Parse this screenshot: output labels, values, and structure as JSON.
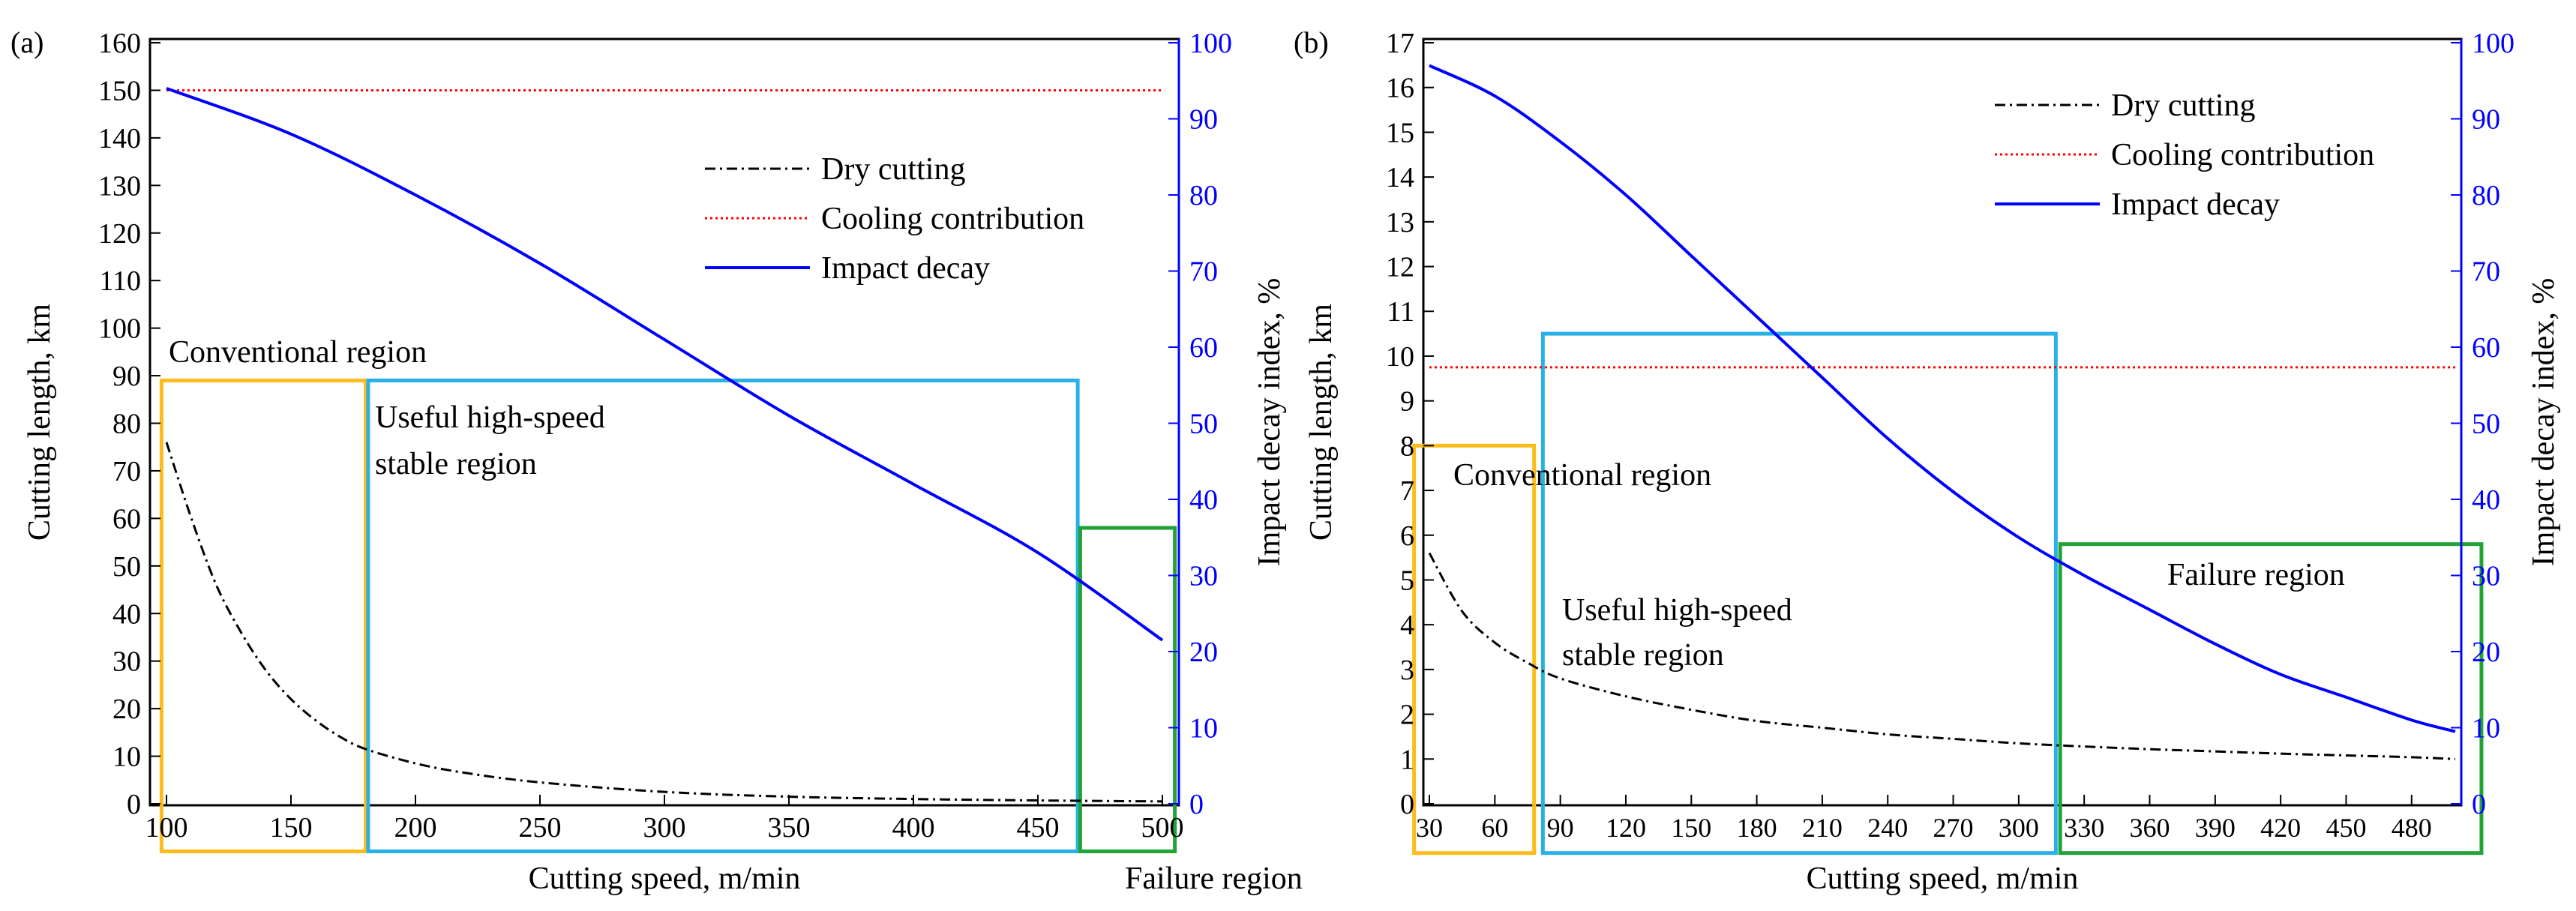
{
  "panel_a": {
    "label": "(a)",
    "xlabel": "Cutting speed, m/min",
    "ylabel_left": "Cutting length, km",
    "ylabel_right": "Impact decay index, %",
    "xticks": [
      100,
      150,
      200,
      250,
      300,
      350,
      400,
      450,
      500
    ],
    "yticks_left": [
      0,
      10,
      20,
      30,
      40,
      50,
      60,
      70,
      80,
      90,
      100,
      110,
      120,
      130,
      140,
      150,
      160
    ],
    "yticks_right": [
      0,
      10,
      20,
      30,
      40,
      50,
      60,
      70,
      80,
      90,
      100
    ],
    "legend": [
      "Dry cutting",
      "Cooling contribution",
      "Impact decay"
    ],
    "regions": [
      {
        "label": "Conventional region",
        "color": "#fbbc1c",
        "x_range": [
          98,
          180
        ],
        "y_range_left": [
          -10,
          89
        ]
      },
      {
        "label": "Useful high-speed\nstable region",
        "color": "#29b1e6",
        "x_range": [
          181,
          466
        ],
        "y_range_left": [
          -10,
          89
        ]
      },
      {
        "label": "Failure region",
        "color": "#21a339",
        "x_range": [
          467,
          505
        ],
        "y_range_left": [
          -10,
          58
        ]
      }
    ]
  },
  "panel_b": {
    "label": "(b)",
    "xlabel": "Cutting speed, m/min",
    "ylabel_left": "Cutting length, km",
    "ylabel_right": "Impact decay index, %",
    "xticks": [
      30,
      60,
      90,
      120,
      150,
      180,
      210,
      240,
      270,
      300,
      330,
      360,
      390,
      420,
      450,
      480
    ],
    "yticks_left": [
      0,
      1,
      2,
      3,
      4,
      5,
      6,
      7,
      8,
      9,
      10,
      11,
      12,
      13,
      14,
      15,
      16,
      17
    ],
    "yticks_right": [
      0,
      10,
      20,
      30,
      40,
      50,
      60,
      70,
      80,
      90,
      100
    ],
    "legend": [
      "Dry cutting",
      "Cooling contribution",
      "Impact decay"
    ],
    "regions": [
      {
        "label": "Conventional region",
        "color": "#fbbc1c",
        "x_range": [
          23,
          78
        ],
        "y_range_left": [
          -1.1,
          8.0
        ]
      },
      {
        "label": "Useful high-speed\nstable region",
        "color": "#29b1e6",
        "x_range": [
          82,
          317
        ],
        "y_range_left": [
          -1.1,
          10.5
        ]
      },
      {
        "label": "Failure region",
        "color": "#21a339",
        "x_range": [
          319,
          512
        ],
        "y_range_left": [
          -1.1,
          5.8
        ]
      }
    ]
  },
  "chart_data": [
    {
      "type": "line",
      "panel": "(a)",
      "xlabel": "Cutting speed, m/min",
      "ylabel": "Cutting length, km",
      "y2label": "Impact decay index, %",
      "xlim": [
        100,
        500
      ],
      "ylim": [
        0,
        160
      ],
      "y2lim": [
        0,
        100
      ],
      "series": [
        {
          "name": "Dry cutting",
          "axis": "left",
          "color": "#000000",
          "style": "dashdot",
          "x": [
            100,
            110,
            120,
            130,
            140,
            150,
            160,
            170,
            180,
            200,
            220,
            250,
            300,
            350,
            400,
            450,
            500
          ],
          "y": [
            76,
            60,
            46,
            36,
            28,
            22,
            17.5,
            14,
            11.5,
            8.5,
            6.5,
            4.5,
            2.5,
            1.5,
            1,
            0.7,
            0.5
          ]
        },
        {
          "name": "Cooling contribution",
          "axis": "left",
          "color": "#ff0000",
          "style": "dotted",
          "x": [
            100,
            500
          ],
          "y": [
            150,
            150
          ]
        },
        {
          "name": "Impact decay",
          "axis": "right",
          "color": "#0000ff",
          "style": "solid",
          "x": [
            100,
            150,
            200,
            250,
            300,
            350,
            400,
            450,
            500
          ],
          "y": [
            94,
            88,
            80,
            71,
            61,
            51,
            42,
            33,
            21.5
          ]
        }
      ]
    },
    {
      "type": "line",
      "panel": "(b)",
      "xlabel": "Cutting speed, m/min",
      "ylabel": "Cutting length, km",
      "y2label": "Impact decay index, %",
      "xlim": [
        30,
        500
      ],
      "ylim": [
        0,
        17
      ],
      "y2lim": [
        0,
        100
      ],
      "series": [
        {
          "name": "Dry cutting",
          "axis": "left",
          "color": "#000000",
          "style": "dashdot",
          "x": [
            30,
            45,
            60,
            75,
            90,
            120,
            150,
            180,
            210,
            240,
            270,
            300,
            330,
            360,
            390,
            420,
            450,
            480,
            500
          ],
          "y": [
            5.6,
            4.3,
            3.6,
            3.15,
            2.8,
            2.4,
            2.1,
            1.85,
            1.7,
            1.55,
            1.45,
            1.35,
            1.28,
            1.22,
            1.17,
            1.12,
            1.08,
            1.04,
            1.0
          ]
        },
        {
          "name": "Cooling contribution",
          "axis": "left",
          "color": "#ff0000",
          "style": "dotted",
          "x": [
            30,
            500
          ],
          "y": [
            9.75,
            9.75
          ]
        },
        {
          "name": "Impact decay",
          "axis": "right",
          "color": "#0000ff",
          "style": "solid",
          "x": [
            30,
            60,
            90,
            120,
            150,
            180,
            210,
            240,
            270,
            300,
            330,
            360,
            390,
            420,
            450,
            480,
            500
          ],
          "y": [
            97,
            93,
            87,
            80,
            72,
            64,
            56,
            48,
            41,
            35,
            30,
            25.5,
            21,
            17,
            14,
            11,
            9.5
          ]
        }
      ]
    }
  ]
}
